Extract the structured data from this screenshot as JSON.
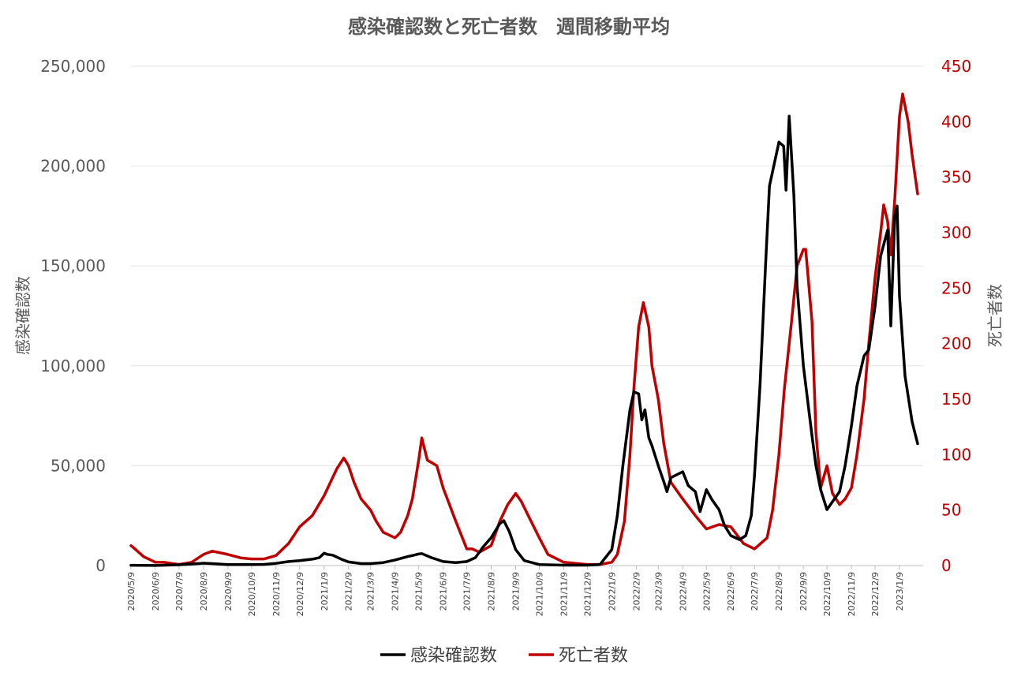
{
  "chart_data": {
    "type": "line",
    "title": "感染確認数と死亡者数　週間移動平均",
    "ylabel_left": "感染確認数",
    "ylabel_right": "死亡者数",
    "ylim_left": [
      0,
      250000
    ],
    "ylim_right": [
      0,
      450
    ],
    "yticks_left": [
      "0",
      "50,000",
      "100,000",
      "150,000",
      "200,000",
      "250,000"
    ],
    "yticks_right": [
      "0",
      "50",
      "100",
      "150",
      "200",
      "250",
      "300",
      "350",
      "400",
      "450"
    ],
    "x_tick_labels": [
      "2020/5/9",
      "2020/6/9",
      "2020/7/9",
      "2020/8/9",
      "2020/9/9",
      "2020/10/9",
      "2020/11/9",
      "2020/12/9",
      "2021/1/9",
      "2021/2/9",
      "2021/3/9",
      "2021/4/9",
      "2021/5/9",
      "2021/6/9",
      "2021/7/9",
      "2021/8/9",
      "2021/9/9",
      "2021/10/9",
      "2021/11/9",
      "2021/12/9",
      "2022/1/9",
      "2022/2/9",
      "2022/3/9",
      "2022/4/9",
      "2022/5/9",
      "2022/6/9",
      "2022/7/9",
      "2022/8/9",
      "2022/9/9",
      "2022/10/9",
      "2022/11/9",
      "2022/12/9",
      "2023/1/9"
    ],
    "x_start": "2020/5/9",
    "x_end": "2023/2/8",
    "grid": true,
    "legend_position": "bottom",
    "series": [
      {
        "name": "感染確認数",
        "color": "#000000",
        "axis": "left",
        "points": [
          [
            "2020/5/9",
            150
          ],
          [
            "2020/6/9",
            50
          ],
          [
            "2020/7/9",
            400
          ],
          [
            "2020/7/25",
            800
          ],
          [
            "2020/8/9",
            1200
          ],
          [
            "2020/8/20",
            1000
          ],
          [
            "2020/9/9",
            500
          ],
          [
            "2020/10/9",
            500
          ],
          [
            "2020/10/25",
            600
          ],
          [
            "2020/11/9",
            1100
          ],
          [
            "2020/11/25",
            2000
          ],
          [
            "2020/12/9",
            2500
          ],
          [
            "2020/12/25",
            3200
          ],
          [
            "2021/1/3",
            4000
          ],
          [
            "2021/1/9",
            6200
          ],
          [
            "2021/1/13",
            5600
          ],
          [
            "2021/1/20",
            5200
          ],
          [
            "2021/2/1",
            3000
          ],
          [
            "2021/2/9",
            1800
          ],
          [
            "2021/2/25",
            1000
          ],
          [
            "2021/3/9",
            1000
          ],
          [
            "2021/3/25",
            1500
          ],
          [
            "2021/4/9",
            2800
          ],
          [
            "2021/4/25",
            4500
          ],
          [
            "2021/5/1",
            5000
          ],
          [
            "2021/5/9",
            5800
          ],
          [
            "2021/5/13",
            6000
          ],
          [
            "2021/5/25",
            4000
          ],
          [
            "2021/6/9",
            2000
          ],
          [
            "2021/6/25",
            1500
          ],
          [
            "2021/7/9",
            2000
          ],
          [
            "2021/7/20",
            4000
          ],
          [
            "2021/7/29",
            9000
          ],
          [
            "2021/8/9",
            14000
          ],
          [
            "2021/8/20",
            21000
          ],
          [
            "2021/8/25",
            22500
          ],
          [
            "2021/9/1",
            17000
          ],
          [
            "2021/9/9",
            8000
          ],
          [
            "2021/9/20",
            2500
          ],
          [
            "2021/10/9",
            500
          ],
          [
            "2021/11/9",
            200
          ],
          [
            "2021/12/9",
            200
          ],
          [
            "2021/12/25",
            500
          ],
          [
            "2022/1/9",
            8000
          ],
          [
            "2022/1/16",
            25000
          ],
          [
            "2022/1/23",
            50000
          ],
          [
            "2022/2/1",
            78000
          ],
          [
            "2022/2/6",
            87000
          ],
          [
            "2022/2/12",
            86000
          ],
          [
            "2022/2/16",
            73000
          ],
          [
            "2022/2/20",
            78000
          ],
          [
            "2022/2/25",
            64000
          ],
          [
            "2022/3/1",
            60000
          ],
          [
            "2022/3/9",
            50000
          ],
          [
            "2022/3/16",
            42000
          ],
          [
            "2022/3/20",
            37000
          ],
          [
            "2022/3/25",
            44000
          ],
          [
            "2022/4/9",
            47000
          ],
          [
            "2022/4/16",
            40000
          ],
          [
            "2022/4/25",
            37000
          ],
          [
            "2022/5/1",
            27000
          ],
          [
            "2022/5/9",
            38000
          ],
          [
            "2022/5/16",
            33000
          ],
          [
            "2022/5/25",
            28000
          ],
          [
            "2022/6/1",
            20000
          ],
          [
            "2022/6/9",
            15000
          ],
          [
            "2022/6/20",
            13000
          ],
          [
            "2022/6/28",
            15000
          ],
          [
            "2022/7/5",
            25000
          ],
          [
            "2022/7/9",
            45000
          ],
          [
            "2022/7/16",
            90000
          ],
          [
            "2022/7/23",
            150000
          ],
          [
            "2022/7/28",
            190000
          ],
          [
            "2022/8/9",
            212000
          ],
          [
            "2022/8/15",
            210000
          ],
          [
            "2022/8/18",
            188000
          ],
          [
            "2022/8/22",
            225000
          ],
          [
            "2022/8/28",
            185000
          ],
          [
            "2022/9/1",
            140000
          ],
          [
            "2022/9/9",
            100000
          ],
          [
            "2022/9/20",
            65000
          ],
          [
            "2022/9/25",
            50000
          ],
          [
            "2022/10/1",
            38000
          ],
          [
            "2022/10/9",
            28000
          ],
          [
            "2022/10/16",
            32000
          ],
          [
            "2022/10/25",
            37000
          ],
          [
            "2022/11/1",
            50000
          ],
          [
            "2022/11/9",
            70000
          ],
          [
            "2022/11/16",
            90000
          ],
          [
            "2022/11/25",
            105000
          ],
          [
            "2022/12/1",
            108000
          ],
          [
            "2022/12/9",
            130000
          ],
          [
            "2022/12/16",
            155000
          ],
          [
            "2022/12/25",
            168000
          ],
          [
            "2022/12/29",
            120000
          ],
          [
            "2023/1/3",
            175000
          ],
          [
            "2023/1/6",
            180000
          ],
          [
            "2023/1/9",
            135000
          ],
          [
            "2023/1/16",
            95000
          ],
          [
            "2023/1/25",
            72000
          ],
          [
            "2023/2/1",
            61000
          ]
        ]
      },
      {
        "name": "死亡者数",
        "color": "#c00000",
        "axis": "right",
        "points": [
          [
            "2020/5/9",
            18
          ],
          [
            "2020/5/14",
            15
          ],
          [
            "2020/5/25",
            8
          ],
          [
            "2020/6/9",
            3
          ],
          [
            "2020/6/20",
            3
          ],
          [
            "2020/7/9",
            1
          ],
          [
            "2020/7/25",
            3
          ],
          [
            "2020/8/9",
            10
          ],
          [
            "2020/8/20",
            13
          ],
          [
            "2020/9/9",
            10
          ],
          [
            "2020/9/25",
            7
          ],
          [
            "2020/10/9",
            6
          ],
          [
            "2020/10/25",
            6
          ],
          [
            "2020/11/9",
            9
          ],
          [
            "2020/11/25",
            20
          ],
          [
            "2020/12/9",
            35
          ],
          [
            "2020/12/25",
            45
          ],
          [
            "2021/1/9",
            63
          ],
          [
            "2021/1/25",
            87
          ],
          [
            "2021/2/3",
            97
          ],
          [
            "2021/2/9",
            90
          ],
          [
            "2021/2/16",
            75
          ],
          [
            "2021/2/25",
            60
          ],
          [
            "2021/3/9",
            50
          ],
          [
            "2021/3/16",
            40
          ],
          [
            "2021/3/25",
            30
          ],
          [
            "2021/4/9",
            25
          ],
          [
            "2021/4/16",
            30
          ],
          [
            "2021/4/25",
            45
          ],
          [
            "2021/5/1",
            60
          ],
          [
            "2021/5/9",
            95
          ],
          [
            "2021/5/13",
            115
          ],
          [
            "2021/5/20",
            95
          ],
          [
            "2021/6/1",
            90
          ],
          [
            "2021/6/9",
            70
          ],
          [
            "2021/6/25",
            40
          ],
          [
            "2021/7/9",
            15
          ],
          [
            "2021/7/16",
            15
          ],
          [
            "2021/7/25",
            12
          ],
          [
            "2021/8/9",
            18
          ],
          [
            "2021/8/20",
            40
          ],
          [
            "2021/8/30",
            55
          ],
          [
            "2021/9/9",
            65
          ],
          [
            "2021/9/16",
            58
          ],
          [
            "2021/9/25",
            45
          ],
          [
            "2021/10/9",
            25
          ],
          [
            "2021/10/20",
            10
          ],
          [
            "2021/11/9",
            3
          ],
          [
            "2021/12/9",
            1
          ],
          [
            "2021/12/25",
            1
          ],
          [
            "2022/1/9",
            3
          ],
          [
            "2022/1/16",
            10
          ],
          [
            "2022/1/25",
            40
          ],
          [
            "2022/2/1",
            100
          ],
          [
            "2022/2/6",
            160
          ],
          [
            "2022/2/12",
            215
          ],
          [
            "2022/2/18",
            237
          ],
          [
            "2022/2/25",
            215
          ],
          [
            "2022/3/1",
            180
          ],
          [
            "2022/3/9",
            150
          ],
          [
            "2022/3/16",
            110
          ],
          [
            "2022/3/25",
            75
          ],
          [
            "2022/4/9",
            60
          ],
          [
            "2022/4/25",
            45
          ],
          [
            "2022/5/9",
            33
          ],
          [
            "2022/5/25",
            37
          ],
          [
            "2022/6/9",
            35
          ],
          [
            "2022/6/25",
            20
          ],
          [
            "2022/7/9",
            15
          ],
          [
            "2022/7/25",
            25
          ],
          [
            "2022/8/1",
            50
          ],
          [
            "2022/8/9",
            100
          ],
          [
            "2022/8/16",
            160
          ],
          [
            "2022/8/25",
            220
          ],
          [
            "2022/9/1",
            270
          ],
          [
            "2022/9/9",
            285
          ],
          [
            "2022/9/12",
            285
          ],
          [
            "2022/9/20",
            220
          ],
          [
            "2022/9/25",
            120
          ],
          [
            "2022/10/1",
            70
          ],
          [
            "2022/10/9",
            90
          ],
          [
            "2022/10/16",
            65
          ],
          [
            "2022/10/25",
            55
          ],
          [
            "2022/11/1",
            60
          ],
          [
            "2022/11/9",
            70
          ],
          [
            "2022/11/16",
            100
          ],
          [
            "2022/11/25",
            150
          ],
          [
            "2022/12/1",
            200
          ],
          [
            "2022/12/9",
            260
          ],
          [
            "2022/12/16",
            300
          ],
          [
            "2022/12/20",
            325
          ],
          [
            "2022/12/25",
            310
          ],
          [
            "2022/12/29",
            280
          ],
          [
            "2023/1/3",
            330
          ],
          [
            "2023/1/9",
            405
          ],
          [
            "2023/1/13",
            425
          ],
          [
            "2023/1/20",
            400
          ],
          [
            "2023/1/25",
            370
          ],
          [
            "2023/2/1",
            335
          ]
        ]
      }
    ]
  }
}
